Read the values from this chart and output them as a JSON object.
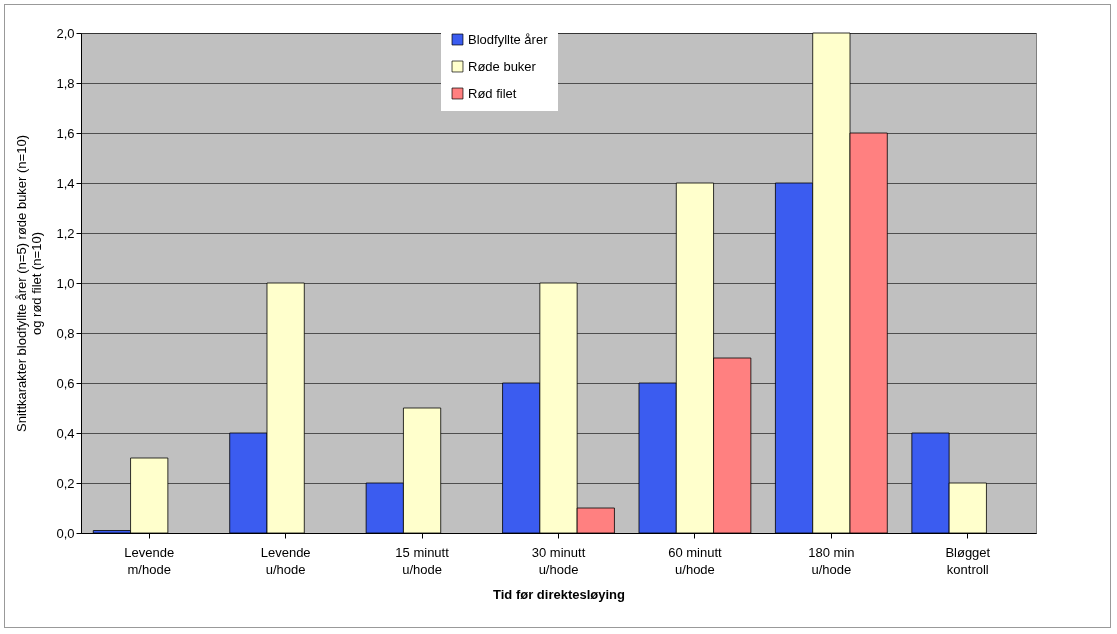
{
  "chart_data": {
    "type": "bar",
    "xlabel": "Tid før direktesløying",
    "ylabel": "Snittkarakter blodfyllte årer (n=5) røde buker (n=10) og rød filet (n=10)",
    "categories": [
      "Levende m/hode",
      "Levende u/hode",
      "15 minutt u/hode",
      "30 minutt u/hode",
      "60 minutt u/hode",
      "180 min u/hode",
      "Bløgget kontroll"
    ],
    "series": [
      {
        "name": "Blodfyllte årer",
        "color": "#3b5cf0",
        "values": [
          0.01,
          0.4,
          0.2,
          0.6,
          0.6,
          1.4,
          0.4
        ]
      },
      {
        "name": "Røde buker",
        "color": "#ffffcc",
        "values": [
          0.3,
          1.0,
          0.5,
          1.0,
          1.4,
          2.0,
          0.2
        ]
      },
      {
        "name": "Rød filet",
        "color": "#ff8080",
        "values": [
          null,
          null,
          null,
          0.1,
          0.7,
          1.6,
          null
        ]
      }
    ],
    "ylim": [
      0,
      2
    ],
    "yticks": [
      {
        "value": 0,
        "label": "0,0"
      },
      {
        "value": 0.2,
        "label": "0,2"
      },
      {
        "value": 0.4,
        "label": "0,4"
      },
      {
        "value": 0.6,
        "label": "0,6"
      },
      {
        "value": 0.8,
        "label": "0,8"
      },
      {
        "value": 1.0,
        "label": "1,0"
      },
      {
        "value": 1.2,
        "label": "1,2"
      },
      {
        "value": 1.4,
        "label": "1,4"
      },
      {
        "value": 1.6,
        "label": "1,6"
      },
      {
        "value": 1.8,
        "label": "1,8"
      },
      {
        "value": 2.0,
        "label": "2,0"
      }
    ],
    "grid": "y",
    "legend": "top"
  }
}
